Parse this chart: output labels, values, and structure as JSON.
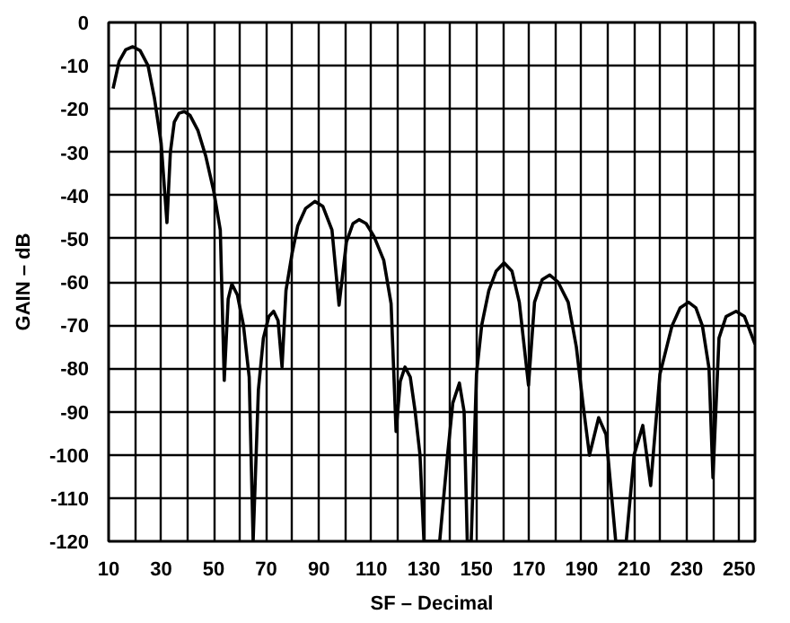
{
  "chart_data": {
    "type": "line",
    "xlabel": "SF – Decimal",
    "ylabel": "GAIN – dB",
    "x": [
      11.7,
      14,
      16.5,
      19.2,
      22,
      25,
      27.4,
      30,
      32.2,
      33.5,
      35,
      36.8,
      38.8,
      41,
      44,
      47,
      50,
      52.5,
      54,
      55.5,
      56.9,
      59,
      61.3,
      63.5,
      65,
      67,
      68.9,
      71,
      72.8,
      74.5,
      76,
      77.5,
      79.8,
      82,
      85,
      88.5,
      91.5,
      95,
      97.7,
      100.5,
      103,
      105.3,
      108,
      111,
      114.7,
      117.5,
      119.4,
      121,
      122.8,
      124.8,
      126.6,
      128.5,
      130,
      133,
      136,
      139,
      141,
      143.5,
      145.3,
      146.5,
      148,
      150,
      152,
      154.7,
      157.5,
      160.5,
      163.5,
      166.3,
      169.8,
      172.1,
      175,
      177.9,
      181,
      184.9,
      188,
      190.5,
      193,
      196.5,
      199.3,
      203,
      207,
      210,
      213.3,
      216.3,
      219.8,
      224.4,
      227.5,
      230.7,
      233.5,
      236,
      238.5,
      240,
      242.3,
      245,
      248.8,
      252,
      256
    ],
    "series": [
      {
        "color": "#000000",
        "values": [
          -15.3,
          -9,
          -6.3,
          -5.6,
          -6.5,
          -10,
          -17.4,
          -28,
          -46.3,
          -30,
          -23,
          -21,
          -20.6,
          -21.5,
          -25,
          -31,
          -39,
          -48,
          -82.8,
          -64,
          -60.5,
          -63,
          -70,
          -82,
          -120,
          -85,
          -73,
          -68,
          -66.8,
          -69,
          -79.7,
          -62,
          -53.5,
          -47,
          -43,
          -41.4,
          -42.5,
          -48,
          -65.4,
          -50.8,
          -46.5,
          -45.6,
          -46.5,
          -49.5,
          -55,
          -65,
          -94.6,
          -83,
          -79.7,
          -82,
          -89.7,
          -100,
          -120,
          -120,
          -120,
          -100,
          -88,
          -83.4,
          -90,
          -120,
          -120,
          -81.4,
          -70,
          -62,
          -57.5,
          -55.6,
          -57.5,
          -64.7,
          -83.9,
          -64.7,
          -59.5,
          -58.4,
          -60,
          -64.7,
          -75,
          -88,
          -100.1,
          -91.4,
          -95.3,
          -120,
          -120,
          -100,
          -93.2,
          -107.1,
          -81.4,
          -70.2,
          -66,
          -64.7,
          -66,
          -70.2,
          -80,
          -105.3,
          -73,
          -68,
          -66.8,
          -68,
          -74.4
        ]
      }
    ],
    "xlim": [
      10,
      256
    ],
    "ylim": [
      -120,
      0
    ],
    "xticks": [
      10,
      {
        "value": 20,
        "label": null
      },
      30,
      {
        "value": 40,
        "label": null
      },
      50,
      {
        "value": 60,
        "label": null
      },
      70,
      {
        "value": 80,
        "label": null
      },
      90,
      {
        "value": 100,
        "label": null
      },
      110,
      {
        "value": 120,
        "label": null
      },
      130,
      {
        "value": 140,
        "label": null
      },
      150,
      {
        "value": 160,
        "label": null
      },
      170,
      {
        "value": 180,
        "label": null
      },
      190,
      {
        "value": 200,
        "label": null
      },
      210,
      {
        "value": 220,
        "label": null
      },
      230,
      {
        "value": 240,
        "label": null
      },
      250
    ],
    "yticks": [
      0,
      -10,
      -20,
      -30,
      -40,
      -50,
      -60,
      -70,
      -80,
      -90,
      -100,
      -110,
      -120
    ],
    "grid": true,
    "line_style": "solid",
    "marker": "none"
  }
}
